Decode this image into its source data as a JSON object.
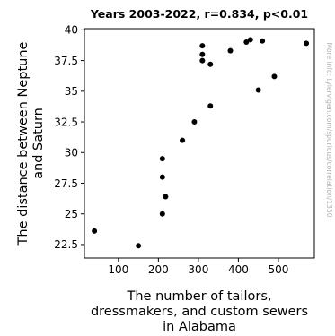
{
  "chart_data": {
    "type": "scatter",
    "title": "Years 2003-2022, r=0.834, p<0.01",
    "xlabel": [
      "The number of tailors,",
      "dressmakers, and custom sewers",
      "in Alabama"
    ],
    "ylabel": [
      "The distance between Neptune",
      "and Saturn"
    ],
    "watermark": "More info: tylervigen.com/spurious/correlation/1330",
    "xlim": [
      15,
      590
    ],
    "ylim": [
      21.4,
      40.1
    ],
    "x_ticks": [
      100,
      200,
      300,
      400,
      500
    ],
    "y_ticks": [
      22.5,
      25,
      27.5,
      30,
      32.5,
      35,
      37.5,
      40
    ],
    "x_tick_labels": [
      "100",
      "200",
      "300",
      "400",
      "500"
    ],
    "y_tick_labels": [
      "22.5",
      "25",
      "27.5",
      "30",
      "32.5",
      "35",
      "37.5",
      "40"
    ],
    "grid": false,
    "marker_color": "#000000",
    "points": [
      {
        "x": 40,
        "y": 23.6
      },
      {
        "x": 150,
        "y": 22.4
      },
      {
        "x": 210,
        "y": 25.0
      },
      {
        "x": 218,
        "y": 26.4
      },
      {
        "x": 210,
        "y": 28.0
      },
      {
        "x": 210,
        "y": 29.5
      },
      {
        "x": 260,
        "y": 31.0
      },
      {
        "x": 290,
        "y": 32.5
      },
      {
        "x": 330,
        "y": 33.8
      },
      {
        "x": 310,
        "y": 37.5
      },
      {
        "x": 310,
        "y": 38.0
      },
      {
        "x": 310,
        "y": 38.7
      },
      {
        "x": 330,
        "y": 37.2
      },
      {
        "x": 380,
        "y": 38.3
      },
      {
        "x": 420,
        "y": 39.0
      },
      {
        "x": 430,
        "y": 39.2
      },
      {
        "x": 460,
        "y": 39.1
      },
      {
        "x": 450,
        "y": 35.1
      },
      {
        "x": 490,
        "y": 36.2
      },
      {
        "x": 570,
        "y": 38.9
      }
    ]
  }
}
